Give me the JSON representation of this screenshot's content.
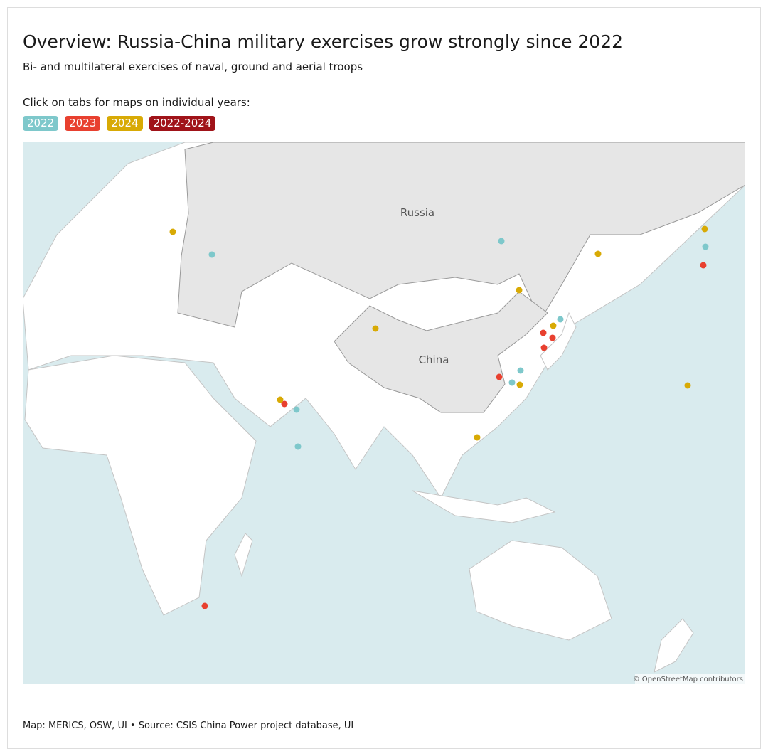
{
  "header": {
    "title": "Overview: Russia-China military exercises grow strongly since 2022",
    "subtitle": "Bi- and multilateral exercises of naval, ground and aerial troops"
  },
  "instruction": "Click on tabs for maps on individual years:",
  "tabs": [
    "2022",
    "2023",
    "2024",
    "2022-2024"
  ],
  "map": {
    "labels": [
      "Russia",
      "China"
    ],
    "attribution": "© OpenStreetMap contributors"
  },
  "footer": "Map: MERICS, OSW, UI • Source: CSIS China Power project database, UI"
}
